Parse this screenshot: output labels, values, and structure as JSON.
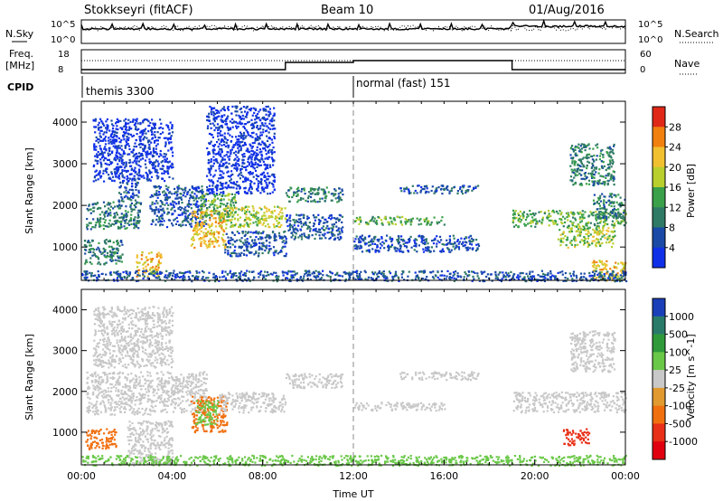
{
  "header": {
    "station": "Stokkseyri (fitACF)",
    "beam": "Beam 10",
    "date": "01/Aug/2016"
  },
  "summary": {
    "nsky_label": "N.Sky",
    "nsearch_label": "N.Search",
    "freq_label_1": "Freq.",
    "freq_label_2": "[MHz]",
    "nave_label": "Nave",
    "cpid_label": "CPID",
    "nsky_ticks": {
      "top_base": "10",
      "top_exp": "^5",
      "bot_base": "10",
      "bot_exp": "^0"
    },
    "freq_ticks": [
      "18",
      "8"
    ],
    "nave_ticks": [
      "60",
      "0"
    ],
    "cpid_modes": [
      {
        "name": "themis 3300",
        "start_hour": 0
      },
      {
        "name": "normal (fast) 151",
        "start_hour": 12
      }
    ]
  },
  "chart_data": [
    {
      "type": "heatmap",
      "title": "",
      "xlabel": "",
      "ylabel": "Slant Range [km]",
      "x_unit": "hour UT",
      "xlim": [
        0,
        24
      ],
      "ylim": [
        200,
        4500
      ],
      "y_ticks": [
        "1000",
        "2000",
        "3000",
        "4000"
      ],
      "colorbar_label": "Power [dB]",
      "colorbar_ticks": [
        "4",
        "8",
        "12",
        "16",
        "20",
        "24",
        "28"
      ],
      "colorbar_colors": [
        "#1030e8",
        "#1a4aa6",
        "#2f7a64",
        "#3aa04a",
        "#b8cf2e",
        "#f0c030",
        "#f08010",
        "#e02818"
      ],
      "scatter_regions": [
        {
          "t0": 0.2,
          "t1": 2.6,
          "r0": 1450,
          "r1": 2100,
          "level": 2
        },
        {
          "t0": 1.6,
          "t1": 2.5,
          "r0": 2100,
          "r1": 2600,
          "level": 1
        },
        {
          "t0": 0.1,
          "t1": 1.8,
          "r0": 600,
          "r1": 1200,
          "level": 2
        },
        {
          "t0": 2.4,
          "t1": 3.5,
          "r0": 300,
          "r1": 900,
          "level": 5
        },
        {
          "t0": 3.0,
          "t1": 5.5,
          "r0": 1500,
          "r1": 2500,
          "level": 1
        },
        {
          "t0": 4.8,
          "t1": 6.4,
          "r0": 1000,
          "r1": 1900,
          "level": 5
        },
        {
          "t0": 5.2,
          "t1": 6.8,
          "r0": 1700,
          "r1": 2300,
          "level": 3
        },
        {
          "t0": 6.0,
          "t1": 9.0,
          "r0": 1500,
          "r1": 2000,
          "level": 4
        },
        {
          "t0": 6.3,
          "t1": 9.0,
          "r0": 800,
          "r1": 1400,
          "level": 1
        },
        {
          "t0": 0.5,
          "t1": 4.0,
          "r0": 2600,
          "r1": 4100,
          "level": 0
        },
        {
          "t0": 5.5,
          "t1": 8.5,
          "r0": 2300,
          "r1": 4400,
          "level": 0
        },
        {
          "t0": 9.0,
          "t1": 11.5,
          "r0": 2100,
          "r1": 2450,
          "level": 2
        },
        {
          "t0": 9.0,
          "t1": 11.5,
          "r0": 1200,
          "r1": 1800,
          "level": 1
        },
        {
          "t0": 12.0,
          "t1": 16.0,
          "r0": 1550,
          "r1": 1750,
          "level": 3
        },
        {
          "t0": 14.0,
          "t1": 17.5,
          "r0": 2300,
          "r1": 2500,
          "level": 1
        },
        {
          "t0": 12.0,
          "t1": 17.5,
          "r0": 900,
          "r1": 1300,
          "level": 1
        },
        {
          "t0": 19.0,
          "t1": 24.0,
          "r0": 1500,
          "r1": 1900,
          "level": 3
        },
        {
          "t0": 21.0,
          "t1": 23.5,
          "r0": 1000,
          "r1": 1500,
          "level": 4
        },
        {
          "t0": 22.5,
          "t1": 24.0,
          "r0": 1700,
          "r1": 2300,
          "level": 2
        },
        {
          "t0": 21.5,
          "t1": 23.5,
          "r0": 2500,
          "r1": 3500,
          "level": 2
        },
        {
          "t0": 22.5,
          "t1": 24.0,
          "r0": 200,
          "r1": 700,
          "level": 5
        },
        {
          "t0": 0.0,
          "t1": 24.0,
          "r0": 200,
          "r1": 450,
          "level": 1
        }
      ]
    },
    {
      "type": "heatmap",
      "title": "",
      "xlabel": "Time UT",
      "ylabel": "Slant Range [km]",
      "x_unit": "hour UT",
      "xlim": [
        0,
        24
      ],
      "ylim": [
        200,
        4500
      ],
      "x_ticks": [
        "00:00",
        "04:00",
        "08:00",
        "12:00",
        "16:00",
        "20:00",
        "00:00"
      ],
      "y_ticks": [
        "1000",
        "2000",
        "3000",
        "4000"
      ],
      "colorbar_label": "Velocity [m s^-1]",
      "colorbar_ticks": [
        "1000",
        "500",
        "100",
        "25",
        "-25",
        "-100",
        "-500",
        "-1000"
      ],
      "colorbar_colors": [
        "#1a3fb8",
        "#2a7a6a",
        "#2f9a3a",
        "#6ac848",
        "#c8c8c8",
        "#e09a30",
        "#f07010",
        "#e83018",
        "#e00010"
      ],
      "ground_scatter_color": "#c8c8c8",
      "scatter_regions": [
        {
          "t0": 0.2,
          "t1": 3.0,
          "r0": 1450,
          "r1": 2500,
          "level": 4
        },
        {
          "t0": 3.0,
          "t1": 5.5,
          "r0": 1500,
          "r1": 2500,
          "level": 4
        },
        {
          "t0": 2.0,
          "t1": 4.0,
          "r0": 200,
          "r1": 1300,
          "level": 4
        },
        {
          "t0": 4.8,
          "t1": 6.4,
          "r0": 1000,
          "r1": 1900,
          "level": 6
        },
        {
          "t0": 5.0,
          "t1": 6.0,
          "r0": 1200,
          "r1": 1800,
          "level": 3
        },
        {
          "t0": 6.0,
          "t1": 9.0,
          "r0": 1500,
          "r1": 2000,
          "level": 4
        },
        {
          "t0": 0.1,
          "t1": 1.5,
          "r0": 600,
          "r1": 1100,
          "level": 6
        },
        {
          "t0": 9.0,
          "t1": 11.5,
          "r0": 2100,
          "r1": 2450,
          "level": 4
        },
        {
          "t0": 12.0,
          "t1": 16.0,
          "r0": 1550,
          "r1": 1750,
          "level": 4
        },
        {
          "t0": 14.0,
          "t1": 17.5,
          "r0": 2300,
          "r1": 2500,
          "level": 4
        },
        {
          "t0": 19.0,
          "t1": 24.0,
          "r0": 1500,
          "r1": 2000,
          "level": 4
        },
        {
          "t0": 21.2,
          "t1": 22.4,
          "r0": 700,
          "r1": 1100,
          "level": 7
        },
        {
          "t0": 21.5,
          "t1": 23.5,
          "r0": 2500,
          "r1": 3500,
          "level": 4
        },
        {
          "t0": 0.0,
          "t1": 24.0,
          "r0": 200,
          "r1": 450,
          "level": 3
        },
        {
          "t0": 0.5,
          "t1": 4.0,
          "r0": 2600,
          "r1": 4100,
          "level": 4
        }
      ]
    }
  ]
}
